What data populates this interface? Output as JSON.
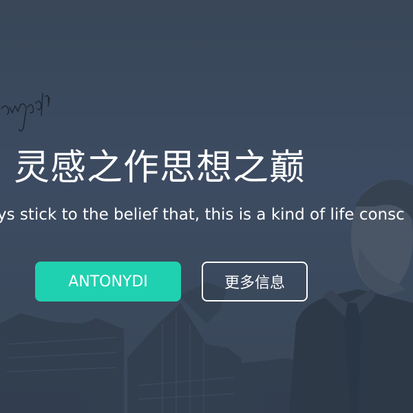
{
  "hero": {
    "headline": "灵感之作思想之巅",
    "tagline": "ys stick to the belief that, this is a kind of life consc",
    "signature_icon": "signature-icon",
    "background_image": "portrait-and-building-photo"
  },
  "buttons": {
    "primary_label": "ANTONYDI",
    "secondary_label": "更多信息"
  },
  "colors": {
    "background": "#3f4d5f",
    "accent": "#1fd1b0",
    "text": "#ffffff"
  }
}
